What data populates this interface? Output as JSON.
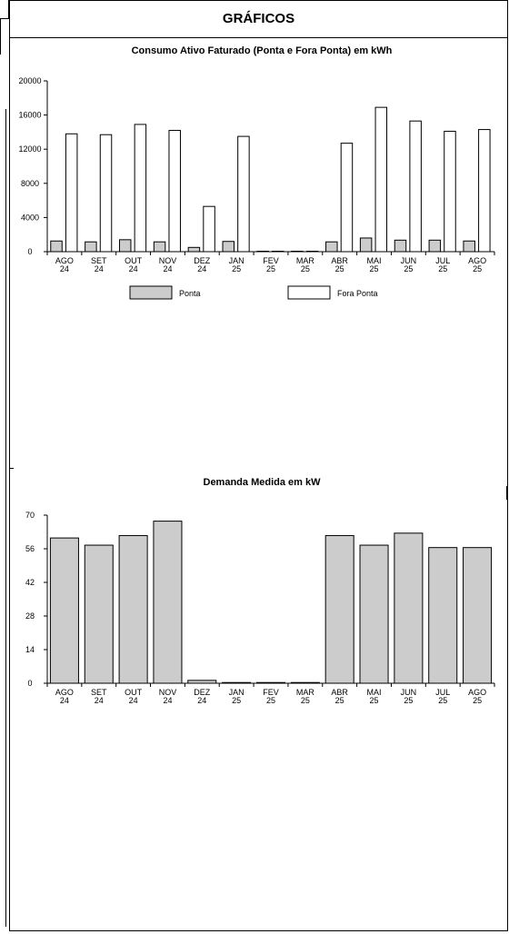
{
  "header": {
    "title": "GRÁFICOS"
  },
  "chart_data": [
    {
      "type": "bar",
      "title": "Consumo Ativo Faturado (Ponta e Fora Ponta) em kWh",
      "categories": [
        [
          "AGO",
          "24"
        ],
        [
          "SET",
          "24"
        ],
        [
          "OUT",
          "24"
        ],
        [
          "NOV",
          "24"
        ],
        [
          "DEZ",
          "24"
        ],
        [
          "JAN",
          "25"
        ],
        [
          "FEV",
          "25"
        ],
        [
          "MAR",
          "25"
        ],
        [
          "ABR",
          "25"
        ],
        [
          "MAI",
          "25"
        ],
        [
          "JUN",
          "25"
        ],
        [
          "JUL",
          "25"
        ],
        [
          "AGO",
          "25"
        ]
      ],
      "ylim": [
        0,
        20000
      ],
      "yticks": [
        "0",
        "4000",
        "8000",
        "12000",
        "16000",
        "20000"
      ],
      "series": [
        {
          "name": "Ponta",
          "color": "#cccccc",
          "values": [
            1250,
            1150,
            1400,
            1150,
            500,
            1200,
            0,
            0,
            1150,
            1600,
            1350,
            1350,
            1250
          ]
        },
        {
          "name": "Fora Ponta",
          "color": "#ffffff",
          "values": [
            13800,
            13700,
            14900,
            14200,
            5300,
            13500,
            0,
            0,
            12700,
            16900,
            15300,
            14100,
            14300
          ]
        }
      ],
      "legend": {
        "position": "bottom"
      }
    },
    {
      "type": "bar",
      "title": "Demanda Medida em kW",
      "categories": [
        [
          "AGO",
          "24"
        ],
        [
          "SET",
          "24"
        ],
        [
          "OUT",
          "24"
        ],
        [
          "NOV",
          "24"
        ],
        [
          "DEZ",
          "24"
        ],
        [
          "JAN",
          "25"
        ],
        [
          "FEV",
          "25"
        ],
        [
          "MAR",
          "25"
        ],
        [
          "ABR",
          "25"
        ],
        [
          "MAI",
          "25"
        ],
        [
          "JUN",
          "25"
        ],
        [
          "JUL",
          "25"
        ],
        [
          "AGO",
          "25"
        ]
      ],
      "ylim": [
        0,
        70
      ],
      "yticks": [
        "0",
        "14",
        "28",
        "42",
        "56",
        "70"
      ],
      "series": [
        {
          "color": "#cccccc",
          "values": [
            60.5,
            57.5,
            61.5,
            67.5,
            1.2,
            0.3,
            0.3,
            0.3,
            61.5,
            57.5,
            62.5,
            56.5,
            56.5
          ]
        }
      ]
    }
  ]
}
